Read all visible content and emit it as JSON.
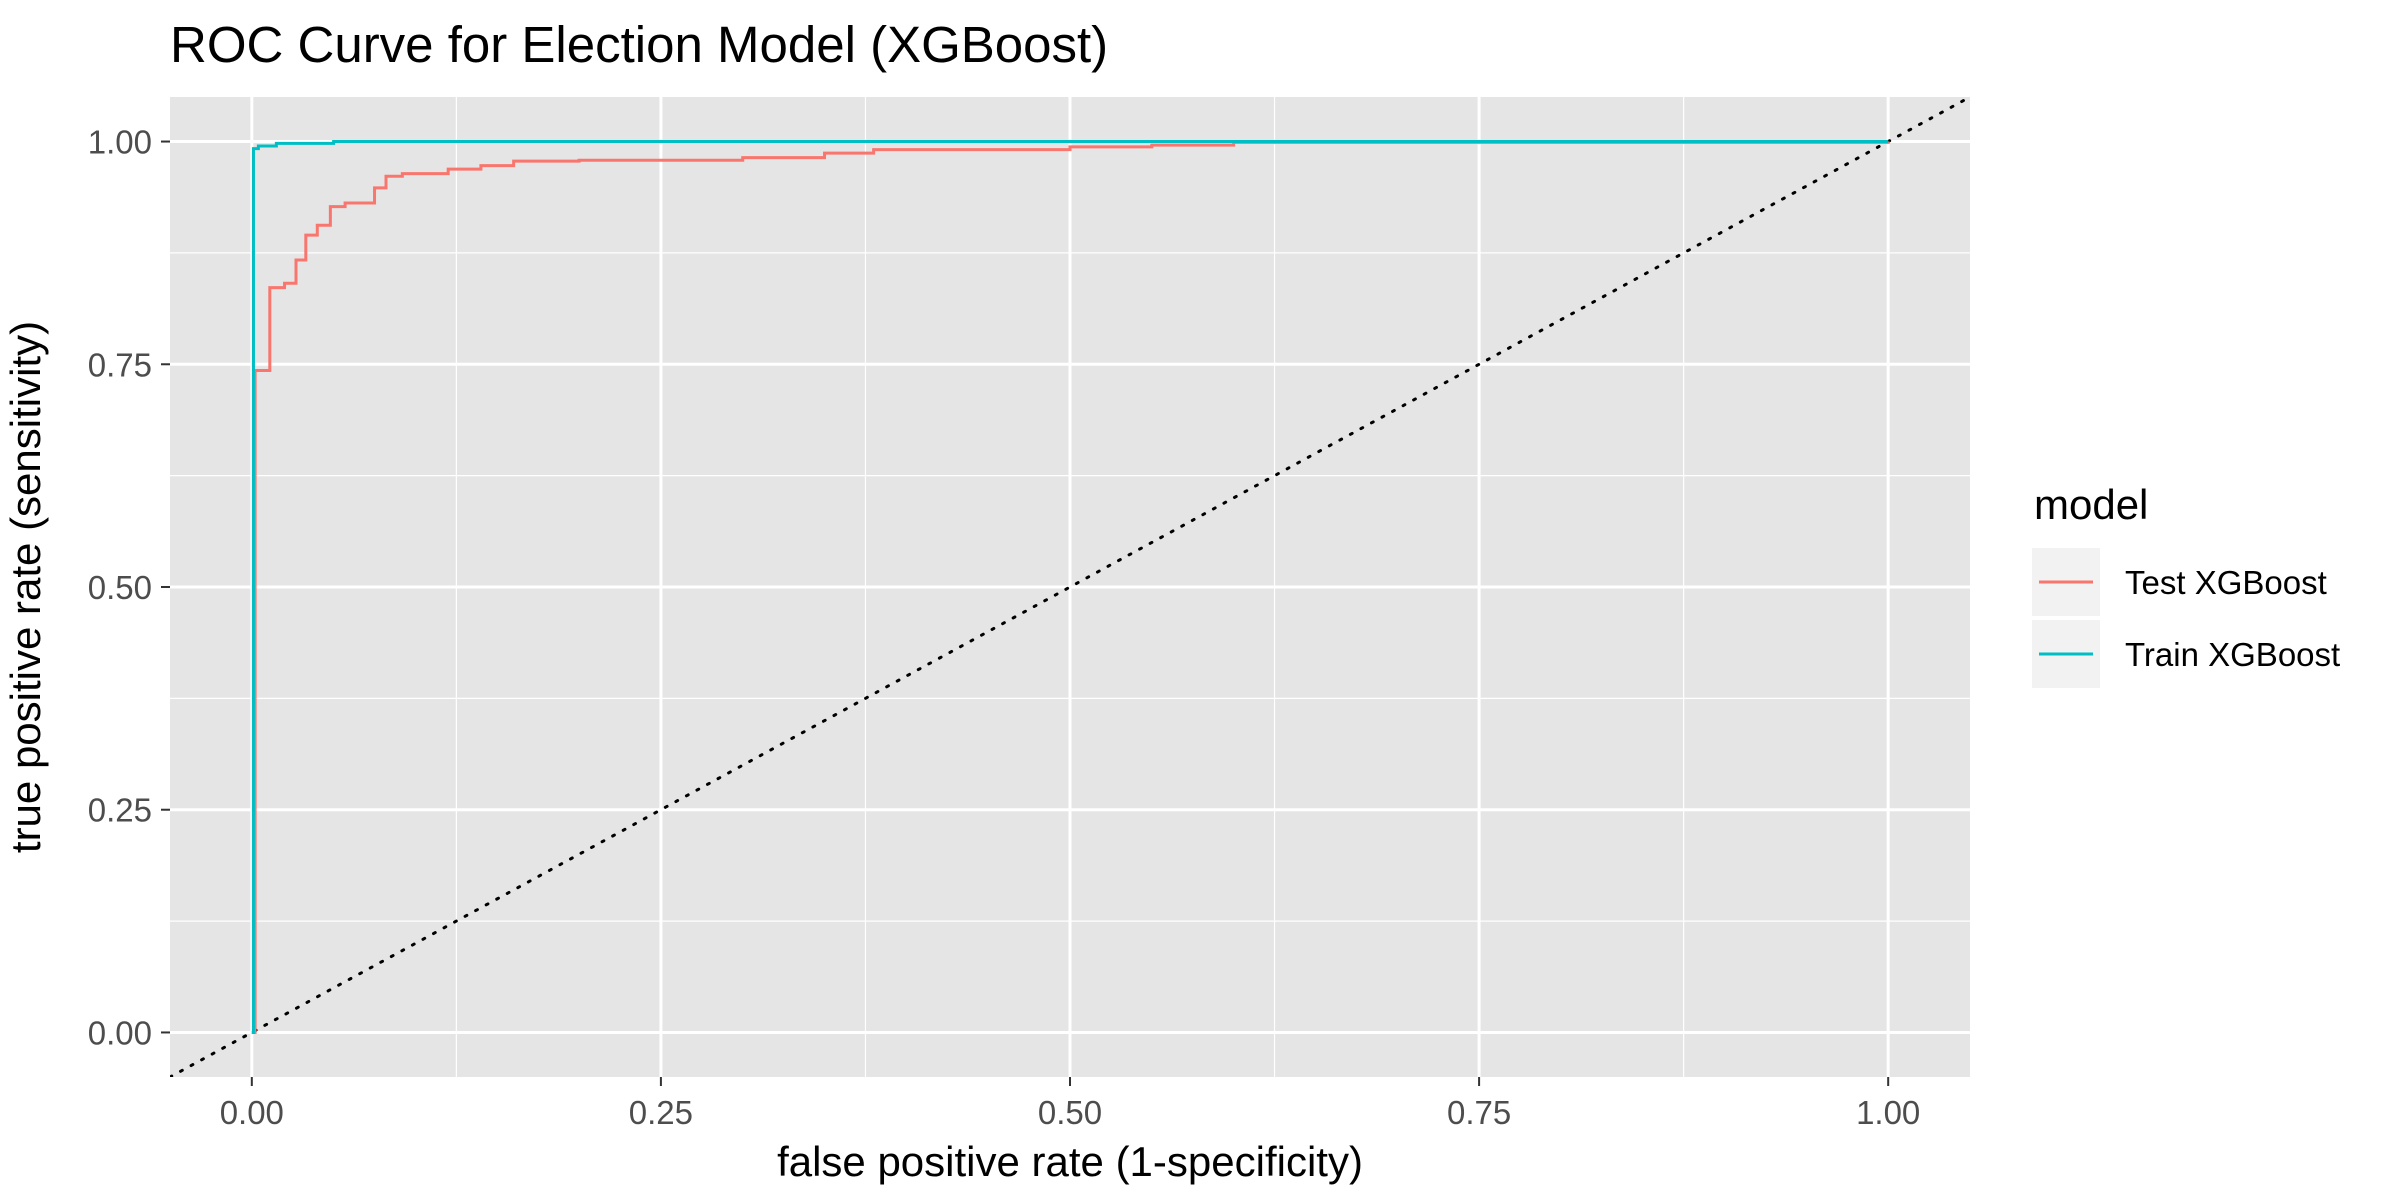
{
  "chart_data": {
    "type": "line",
    "title": "ROC Curve for Election Model (XGBoost)",
    "xlabel": "false positive rate (1-specificity)",
    "ylabel": "true positive rate (sensitivity)",
    "xlim": [
      -0.05,
      1.05
    ],
    "ylim": [
      -0.05,
      1.05
    ],
    "x_ticks": [
      0,
      0.25,
      0.5,
      0.75,
      1
    ],
    "x_tick_labels": [
      "0.00",
      "0.25",
      "0.50",
      "0.75",
      "1.00"
    ],
    "y_ticks": [
      0,
      0.25,
      0.5,
      0.75,
      1
    ],
    "y_tick_labels": [
      "0.00",
      "0.25",
      "0.50",
      "0.75",
      "1.00"
    ],
    "grid": true,
    "panel_background": "#e5e5e5",
    "grid_color": "#ffffff",
    "legend": {
      "title": "model",
      "position": "right"
    },
    "series": [
      {
        "name": "Test XGBoost",
        "color": "#f8766d",
        "step": true,
        "x": [
          0,
          0.002,
          0.011,
          0.011,
          0.02,
          0.027,
          0.033,
          0.04,
          0.048,
          0.057,
          0.075,
          0.082,
          0.092,
          0.12,
          0.14,
          0.16,
          0.2,
          0.3,
          0.35,
          0.38,
          0.5,
          0.55,
          0.6,
          1.0
        ],
        "y": [
          0,
          0.743,
          0.743,
          0.836,
          0.841,
          0.867,
          0.895,
          0.906,
          0.927,
          0.931,
          0.948,
          0.961,
          0.964,
          0.969,
          0.973,
          0.978,
          0.979,
          0.982,
          0.987,
          0.991,
          0.994,
          0.996,
          0.999,
          1.0
        ]
      },
      {
        "name": "Train XGBoost",
        "color": "#00bfc4",
        "step": true,
        "x": [
          0,
          0.001,
          0.004,
          0.015,
          0.05,
          1.0
        ],
        "y": [
          0,
          0.992,
          0.995,
          0.998,
          1.0,
          1.0
        ]
      }
    ],
    "reference_line": {
      "from": [
        -0.05,
        -0.05
      ],
      "to": [
        1.05,
        1.05
      ],
      "style": "dotted",
      "color": "#000000"
    }
  }
}
